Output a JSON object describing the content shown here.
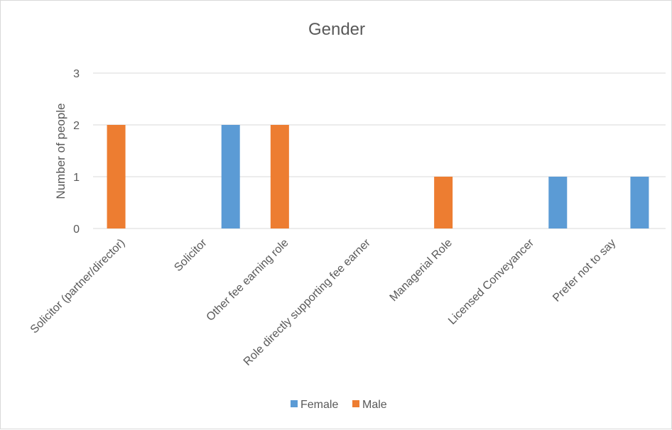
{
  "chart_data": {
    "type": "bar",
    "title": "Gender",
    "xlabel": "",
    "ylabel": "Number of people",
    "ylim": [
      0,
      3
    ],
    "yticks": [
      0,
      1,
      2,
      3
    ],
    "grid": true,
    "legend_position": "bottom",
    "categories": [
      "Solicitor (partner/director)",
      "Solicitor",
      "Other fee earning role",
      "Role directly supporting fee earner",
      "Managerial Role",
      "Licensed Conveyancer",
      "Prefer not to say"
    ],
    "series": [
      {
        "name": "Female",
        "color": "#5b9bd5",
        "values": [
          0,
          2,
          0,
          0,
          0,
          1,
          1
        ]
      },
      {
        "name": "Male",
        "color": "#ed7d31",
        "values": [
          2,
          0,
          2,
          0,
          1,
          0,
          0
        ]
      }
    ]
  }
}
